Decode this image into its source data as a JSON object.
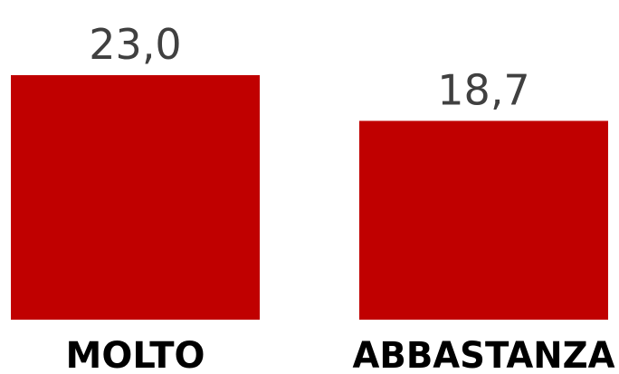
{
  "chart_data": {
    "type": "bar",
    "categories": [
      "MOLTO",
      "ABBASTANZA"
    ],
    "values": [
      23.0,
      18.7
    ],
    "data_labels": [
      "23,0",
      "18,7"
    ],
    "title": "",
    "xlabel": "",
    "ylabel": "",
    "ylim": [
      0,
      23.0
    ],
    "grid": false,
    "bar_color": "#c00000"
  }
}
